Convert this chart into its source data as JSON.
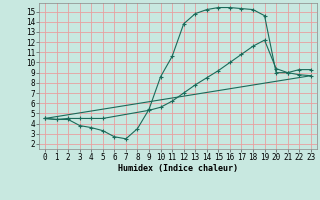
{
  "title": "",
  "xlabel": "Humidex (Indice chaleur)",
  "background_color": "#c8e8e0",
  "grid_color": "#e8a0a0",
  "line_color": "#1a6b5a",
  "xlim": [
    -0.5,
    23.5
  ],
  "ylim": [
    1.5,
    15.8
  ],
  "xticks": [
    0,
    1,
    2,
    3,
    4,
    5,
    6,
    7,
    8,
    9,
    10,
    11,
    12,
    13,
    14,
    15,
    16,
    17,
    18,
    19,
    20,
    21,
    22,
    23
  ],
  "yticks": [
    2,
    3,
    4,
    5,
    6,
    7,
    8,
    9,
    10,
    11,
    12,
    13,
    14,
    15
  ],
  "line1_x": [
    0,
    1,
    2,
    3,
    4,
    5,
    6,
    7,
    8,
    9,
    10,
    11,
    12,
    13,
    14,
    15,
    16,
    17,
    18,
    19,
    20,
    21,
    22,
    23
  ],
  "line1_y": [
    4.5,
    4.4,
    4.4,
    3.8,
    3.6,
    3.3,
    2.7,
    2.5,
    3.5,
    5.4,
    8.6,
    10.6,
    13.8,
    14.8,
    15.2,
    15.4,
    15.4,
    15.3,
    15.2,
    14.6,
    9.0,
    9.0,
    9.3,
    9.3
  ],
  "line2_x": [
    0,
    1,
    2,
    3,
    4,
    5,
    9,
    10,
    11,
    12,
    13,
    14,
    15,
    16,
    17,
    18,
    19,
    20,
    21,
    22,
    23
  ],
  "line2_y": [
    4.5,
    4.4,
    4.5,
    4.5,
    4.5,
    4.5,
    5.3,
    5.6,
    6.2,
    7.0,
    7.8,
    8.5,
    9.2,
    10.0,
    10.8,
    11.6,
    12.2,
    9.4,
    9.0,
    8.8,
    8.7
  ],
  "line3_x": [
    0,
    23
  ],
  "line3_y": [
    4.5,
    8.7
  ],
  "tick_fontsize": 5.5,
  "xlabel_fontsize": 6,
  "linewidth": 0.8,
  "markersize": 3.5,
  "figure_width": 3.2,
  "figure_height": 2.0,
  "dpi": 100
}
